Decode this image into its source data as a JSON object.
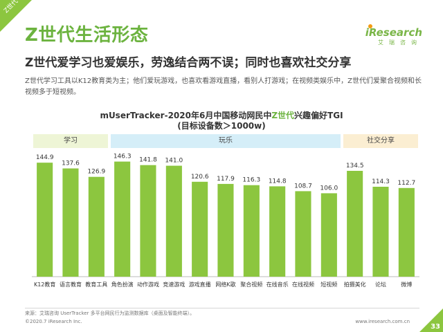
{
  "corner_label": "Z世代",
  "title": "Z世代生活形态",
  "logo": {
    "name": "iResearch",
    "cn": "艾瑞咨询"
  },
  "subtitle": "Z世代爱学习也爱娱乐，劳逸结合两不误；同时也喜欢社交分享",
  "description": "Z世代学习工具以K12教育类为主；他们爱玩游戏，也喜欢看游戏直播，看别人打游戏；在视频类娱乐中，Z世代们爱聚合视频和长视频多于短视频。",
  "footer": {
    "source": "来源：艾瑞咨询 UserTracker 多平台网民行为监测数据库（桌面及智能终端）。",
    "copyright": "©2020.7 iResearch Inc.",
    "website": "www.iresearch.com.cn",
    "page_number": "33"
  },
  "colors": {
    "accent": "#6cb33f",
    "bar": "#8cc63f",
    "band_study": "#eef5d6",
    "band_fun": "#d5eef8",
    "band_social": "#fbeed2"
  },
  "chart_data": {
    "type": "bar",
    "title_parts": [
      "mUserTracker-2020年6月中国移动网民中",
      "Z世代",
      "兴趣偏好TGI"
    ],
    "title_line2": "(目标设备数＞1000w)",
    "groups": [
      {
        "label": "学习",
        "start": 0,
        "end": 2
      },
      {
        "label": "玩乐",
        "start": 3,
        "end": 11
      },
      {
        "label": "社交分享",
        "start": 12,
        "end": 14
      }
    ],
    "categories": [
      "K12教育",
      "语言教育",
      "教育工具",
      "角色扮演",
      "动作游戏",
      "竞速游戏",
      "游戏直播",
      "网络K歌",
      "聚合视频",
      "在线音乐",
      "在线视频",
      "短视频",
      "拍摄美化",
      "论坛",
      "微博"
    ],
    "values": [
      144.9,
      137.6,
      126.9,
      146.3,
      141.8,
      141.0,
      120.6,
      117.9,
      116.3,
      114.8,
      108.7,
      106.0,
      134.5,
      114.3,
      112.7
    ],
    "value_labels": [
      "144.9",
      "137.6",
      "126.9",
      "146.3",
      "141.8",
      "141.0",
      "120.6",
      "117.9",
      "116.3",
      "114.8",
      "108.7",
      "106.0",
      "134.5",
      "114.3",
      "112.7"
    ],
    "ylim": [
      0,
      160
    ],
    "grid": false,
    "legend": "none"
  }
}
